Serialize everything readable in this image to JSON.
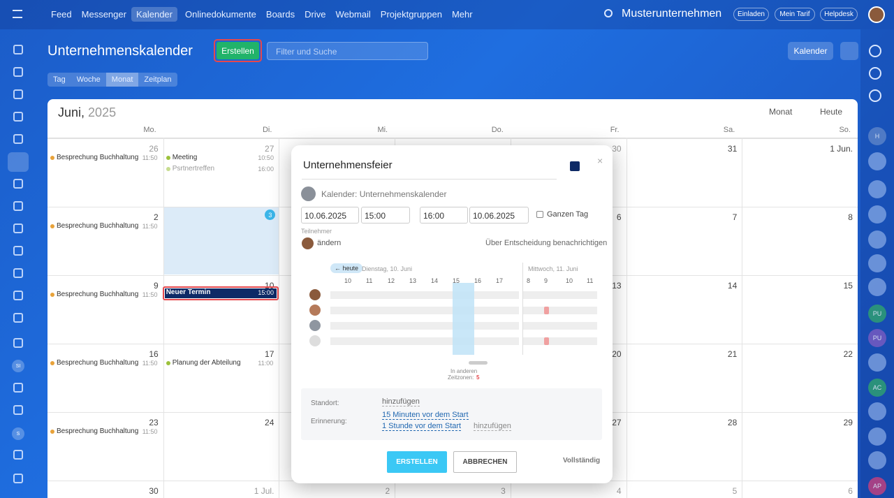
{
  "topnav": {
    "items": [
      "Feed",
      "Messenger",
      "Kalender",
      "Onlinedokumente",
      "Boards",
      "Drive",
      "Webmail",
      "Projektgruppen",
      "Mehr"
    ],
    "company": "Musterunternehmen",
    "buttons": [
      "Einladen",
      "Mein Tarif",
      "Helpdesk"
    ]
  },
  "header": {
    "title": "Unternehmenskalender",
    "create": "Erstellen",
    "search": "Filter und Suche",
    "calendar_button": "Kalender"
  },
  "views": [
    "Tag",
    "Woche",
    "Monat",
    "Zeitplan"
  ],
  "left_sidebar": {
    "badges": [
      "SI",
      "S"
    ]
  },
  "right_sidebar": {
    "badges": [
      "H",
      "PU",
      "PU",
      "AC",
      "AP"
    ]
  },
  "calendar": {
    "month": "Juni,",
    "year": "2025",
    "mode": "Monat",
    "today": "Heute",
    "today_badge": "3",
    "weekdays": [
      "Mo.",
      "Di.",
      "Mi.",
      "Do.",
      "Fr.",
      "Sa.",
      "So."
    ],
    "weeks": [
      [
        "26",
        "27",
        null,
        null,
        "30",
        "31",
        "1 Jun."
      ],
      [
        "2",
        null,
        null,
        null,
        "6",
        "7",
        "8"
      ],
      [
        "9",
        "10",
        null,
        null,
        "13",
        "14",
        "15"
      ],
      [
        "16",
        "17",
        null,
        null,
        "20",
        "21",
        "22"
      ],
      [
        "23",
        "24",
        null,
        null,
        "27",
        "28",
        "29"
      ],
      [
        "30",
        "1 Jul.",
        "2",
        "3",
        "4",
        "5",
        "6"
      ]
    ],
    "events": [
      {
        "week": 0,
        "day": 0,
        "slot": 0,
        "title": "Besprechung Buchhaltung",
        "time": "11:50",
        "color": "#e8a23a"
      },
      {
        "week": 0,
        "day": 1,
        "slot": 0,
        "title": "Meeting",
        "time": "10:50",
        "color": "#9cc13b"
      },
      {
        "week": 0,
        "day": 1,
        "slot": 1,
        "title": "Psrtnertreffen",
        "time": "16:00",
        "color": "#c6dc8f"
      },
      {
        "week": 1,
        "day": 0,
        "slot": 0,
        "title": "Besprechung Buchhaltung",
        "time": "11:50",
        "color": "#e8a23a"
      },
      {
        "week": 2,
        "day": 0,
        "slot": 0,
        "title": "Besprechung Buchhaltung",
        "time": "11:50",
        "color": "#e8a23a"
      },
      {
        "week": 2,
        "day": 1,
        "slot": 0,
        "title": "Neuer Termin",
        "time": "15:00",
        "color": "#0e2a66"
      },
      {
        "week": 3,
        "day": 0,
        "slot": 0,
        "title": "Besprechung Buchhaltung",
        "time": "11:50",
        "color": "#e8a23a"
      },
      {
        "week": 3,
        "day": 1,
        "slot": 0,
        "title": "Planung der Abteilung",
        "time": "11:00",
        "color": "#9cc13b"
      },
      {
        "week": 4,
        "day": 0,
        "slot": 0,
        "title": "Besprechung Buchhaltung",
        "time": "11:50",
        "color": "#e8a23a"
      }
    ]
  },
  "dialog": {
    "title": "Unternehmensfeier",
    "calendar": "Kalender: Unternehmenskalender",
    "date_from": "10.06.2025",
    "time_from": "15:00",
    "time_to": "16:00",
    "date_to": "10.06.2025",
    "all_day": "Ganzen Tag",
    "participants_label": "Teilnehmer",
    "change": "ändern",
    "notify": "Über Entscheidung benachrichtigen",
    "today": "← heute",
    "day1": "Dienstag, 10. Juni",
    "hours1": [
      "10",
      "11",
      "12",
      "13",
      "14",
      "15",
      "16",
      "17"
    ],
    "day2": "Mittwoch, 11. Juni",
    "hours2": [
      "8",
      "9",
      "10",
      "11"
    ],
    "timezones": "In anderen",
    "timezones2": "Zeitzonen:",
    "timezone_count": "5",
    "location_label": "Standort:",
    "location_add": "hinzufügen",
    "reminder_label": "Erinnerung:",
    "reminders": [
      "15 Minuten vor dem Start",
      "1 Stunde vor dem Start"
    ],
    "reminder_add": "hinzufügen",
    "create": "ERSTELLEN",
    "cancel": "ABBRECHEN",
    "full": "Vollständig"
  }
}
